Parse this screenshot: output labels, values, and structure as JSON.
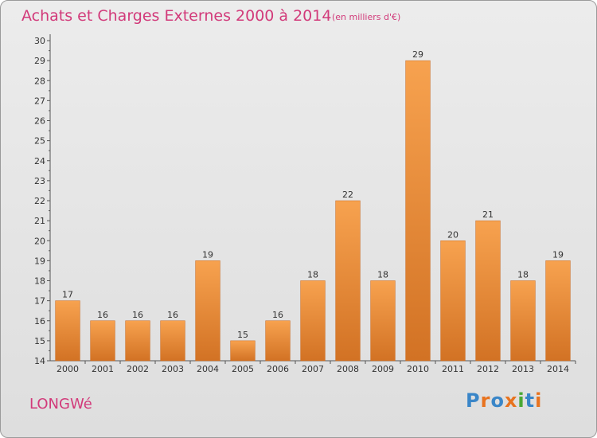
{
  "title": "Achats et Charges Externes 2000 à 2014",
  "unit_label": "(en milliers d'€)",
  "commune": "LONGWé",
  "logo": {
    "text": "Proxiti",
    "letter_colors": [
      "#3a86c8",
      "#e8731f",
      "#3a86c8",
      "#e8731f",
      "#4aa834",
      "#3a86c8",
      "#e8731f"
    ]
  },
  "colors": {
    "title": "#d23a7a",
    "bar_light": "#f7a24f",
    "bar_dark": "#d27224",
    "axis": "#555555",
    "grid": "#888888"
  },
  "chart_data": {
    "type": "bar",
    "title": "Achats et Charges Externes 2000 à 2014",
    "categories": [
      "2000",
      "2001",
      "2002",
      "2003",
      "2004",
      "2005",
      "2006",
      "2007",
      "2008",
      "2009",
      "2010",
      "2011",
      "2012",
      "2013",
      "2014"
    ],
    "values": [
      17,
      16,
      16,
      16,
      19,
      15,
      16,
      18,
      22,
      18,
      29,
      20,
      21,
      18,
      19
    ],
    "xlabel": "",
    "ylabel": "",
    "ylim": [
      14,
      30
    ],
    "yticks": [
      14,
      15,
      16,
      17,
      18,
      19,
      20,
      21,
      22,
      23,
      24,
      25,
      26,
      27,
      28,
      29,
      30
    ],
    "grid": false,
    "data_labels": true
  }
}
